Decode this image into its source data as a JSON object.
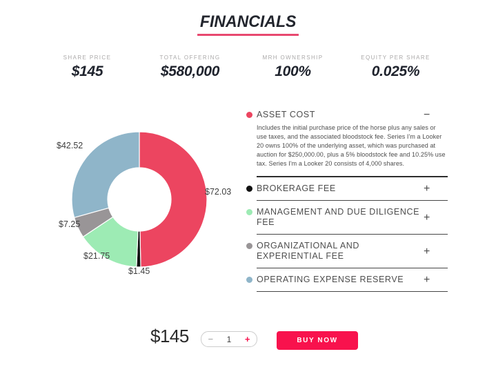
{
  "title": "FINANCIALS",
  "stats": [
    {
      "label": "SHARE PRICE",
      "value": "$145"
    },
    {
      "label": "TOTAL OFFERING",
      "value": "$580,000"
    },
    {
      "label": "MRH OWNERSHIP",
      "value": "100%"
    },
    {
      "label": "EQUITY PER SHARE",
      "value": "0.025%"
    }
  ],
  "chart_data": {
    "type": "pie",
    "donut": true,
    "categories": [
      "Asset Cost",
      "Brokerage Fee",
      "Management and Due Diligence Fee",
      "Organizational and Experiential Fee",
      "Operating Expense Reserve"
    ],
    "values": [
      72.03,
      1.45,
      21.75,
      7.25,
      42.52
    ],
    "labels": [
      "$72.03",
      "$1.45",
      "$21.75",
      "$7.25",
      "$42.52"
    ],
    "colors": [
      "#ec4560",
      "#111111",
      "#9debb4",
      "#999597",
      "#8fb5c9"
    ],
    "total": 145,
    "start_angle": "top",
    "direction": "clockwise",
    "inner_radius_ratio": 0.47,
    "legend_position": "right-accordion"
  },
  "accordion": {
    "items": [
      {
        "label": "ASSET COST",
        "dot_color": "#ec4560",
        "expanded": true,
        "icon": "−",
        "body": "Includes the initial purchase price of the horse plus any sales or use taxes, and the associated bloodstock fee. Series I'm a Looker 20 owns 100% of the underlying asset, which was purchased at auction for $250,000.00, plus a 5% bloodstock fee and 10.25% use tax. Series I'm a Looker 20 consists of 4,000 shares."
      },
      {
        "label": "BROKERAGE FEE",
        "dot_color": "#111111",
        "expanded": false,
        "icon": "+"
      },
      {
        "label": "MANAGEMENT AND DUE DILIGENCE FEE",
        "dot_color": "#9debb4",
        "expanded": false,
        "icon": "+"
      },
      {
        "label": "ORGANIZATIONAL AND EXPERIENTIAL FEE",
        "dot_color": "#999597",
        "expanded": false,
        "icon": "+"
      },
      {
        "label": "OPERATING EXPENSE RESERVE",
        "dot_color": "#8fb5c9",
        "expanded": false,
        "icon": "+"
      }
    ]
  },
  "purchase": {
    "price": "$145",
    "quantity": "1",
    "decrease": "−",
    "increase": "+",
    "buy_label": "BUY NOW"
  },
  "colors": {
    "accent": "#f8124d",
    "title_underline": "#e8486f",
    "heading_text": "#23262e",
    "stat_label": "#aba9a9"
  }
}
